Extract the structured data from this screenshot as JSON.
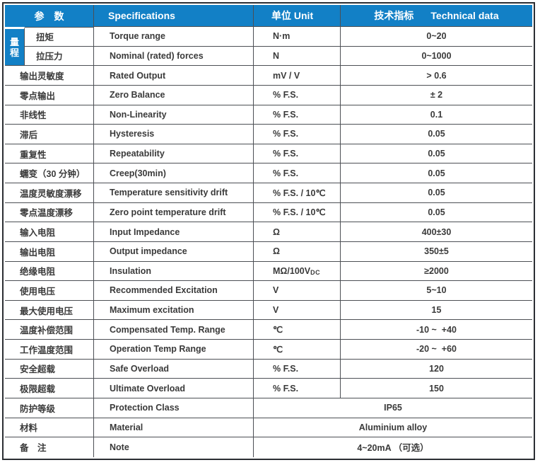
{
  "colors": {
    "header_bg": "#1280c6",
    "header_text": "#ffffff",
    "border_outer": "#2b2e33",
    "border_inner": "#4c4f54",
    "body_text": "#3a3a3a"
  },
  "table": {
    "header": {
      "param": "参　数",
      "spec": "Specifications",
      "unit": "单位 Unit",
      "tech_cn": "技术指标",
      "tech_en": "Technical data"
    },
    "range_group": [
      "量",
      "程"
    ],
    "rows": [
      {
        "param": "扭矩",
        "spec": "Torque range",
        "unit": "N·m",
        "value": "0~20",
        "in_range_group": true
      },
      {
        "param": "拉压力",
        "spec": "Nominal (rated) forces",
        "unit": "N",
        "value": "0~1000",
        "in_range_group": true
      },
      {
        "param": "输出灵敏度",
        "spec": "Rated Output",
        "unit": "mV / V",
        "value": "> 0.6"
      },
      {
        "param": "零点输出",
        "spec": "Zero Balance",
        "unit": "% F.S.",
        "value": "± 2"
      },
      {
        "param": "非线性",
        "spec": "Non-Linearity",
        "unit": "% F.S.",
        "value": "0.1"
      },
      {
        "param": "滞后",
        "spec": "Hysteresis",
        "unit": "% F.S.",
        "value": "0.05"
      },
      {
        "param": "重复性",
        "spec": "Repeatability",
        "unit": "% F.S.",
        "value": "0.05"
      },
      {
        "param": "蠕变（30 分钟）",
        "spec": "Creep(30min)",
        "unit": "% F.S.",
        "value": "0.05"
      },
      {
        "param": "温度灵敏度漂移",
        "spec": "Temperature sensitivity drift",
        "unit": "% F.S. / 10℃",
        "value": "0.05"
      },
      {
        "param": "零点温度漂移",
        "spec": "Zero point temperature drift",
        "unit": "% F.S. / 10℃",
        "value": "0.05"
      },
      {
        "param": "输入电阻",
        "spec": "Input Impedance",
        "unit": "Ω",
        "value": "400±30"
      },
      {
        "param": "输出电阻",
        "spec": "Output impedance",
        "unit": "Ω",
        "value": "350±5"
      },
      {
        "param": "绝缘电阻",
        "spec": "Insulation",
        "unit": "MΩ/100V",
        "unit_sub": "DC",
        "value": "≥2000"
      },
      {
        "param": "使用电压",
        "spec": "Recommended Excitation",
        "unit": "V",
        "value": "5~10"
      },
      {
        "param": "最大使用电压",
        "spec": "Maximum excitation",
        "unit": "V",
        "value": "15"
      },
      {
        "param": "温度补偿范围",
        "spec": "Compensated Temp. Range",
        "unit": "℃",
        "value": "-10 ~  +40"
      },
      {
        "param": "工作温度范围",
        "spec": "Operation Temp Range",
        "unit": "℃",
        "value": "-20 ~  +60"
      },
      {
        "param": "安全超载",
        "spec": "Safe Overload",
        "unit": "% F.S.",
        "value": "120"
      },
      {
        "param": "极限超载",
        "spec": "Ultimate Overload",
        "unit": "% F.S.",
        "value": "150"
      },
      {
        "param": "防护等级",
        "spec": "Protection Class",
        "value": "IP65",
        "merged": true
      },
      {
        "param": "材料",
        "spec": "Material",
        "value": "Aluminium alloy",
        "merged": true
      },
      {
        "param": "备　注",
        "spec": "Note",
        "value": "4~20mA （可选）",
        "merged": true
      }
    ]
  }
}
